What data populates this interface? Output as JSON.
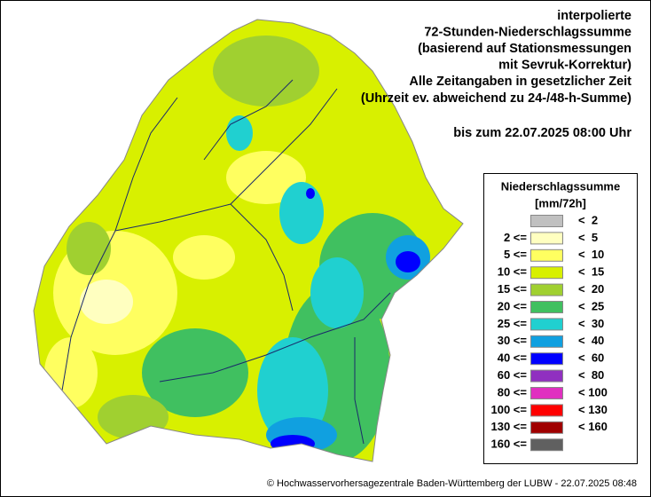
{
  "header": {
    "lines": [
      "interpolierte",
      "72-Stunden-Niederschlagssumme",
      "(basierend auf Stationsmessungen",
      "mit Sevruk-Korrektur)",
      "Alle Zeitangaben in gesetzlicher Zeit",
      "(Uhrzeit ev. abweichend zu 24-/48-h-Summe)"
    ],
    "period": "bis zum 22.07.2025 08:00 Uhr"
  },
  "legend": {
    "title": "Niederschlagssumme",
    "unit": "[mm/72h]",
    "rows": [
      {
        "upper": "<  2",
        "color": "#c0c0c0"
      },
      {
        "lower": "2 <=",
        "upper": "<  5",
        "color": "#ffffc0"
      },
      {
        "lower": "5 <=",
        "upper": "<  10",
        "color": "#ffff60"
      },
      {
        "lower": "10 <=",
        "upper": "<  15",
        "color": "#d8f000"
      },
      {
        "lower": "15 <=",
        "upper": "<  20",
        "color": "#a0d030"
      },
      {
        "lower": "20 <=",
        "upper": "<  25",
        "color": "#40c060"
      },
      {
        "lower": "25 <=",
        "upper": "<  30",
        "color": "#20d0d0"
      },
      {
        "lower": "30 <=",
        "upper": "<  40",
        "color": "#10a0e0"
      },
      {
        "lower": "40 <=",
        "upper": "<  60",
        "color": "#0000ff"
      },
      {
        "lower": "60 <=",
        "upper": "<  80",
        "color": "#9030c0"
      },
      {
        "lower": "80 <=",
        "upper": "< 100",
        "color": "#e030c0"
      },
      {
        "lower": "100 <=",
        "upper": "< 130",
        "color": "#ff0000"
      },
      {
        "lower": "130 <=",
        "upper": "< 160",
        "color": "#a00000"
      },
      {
        "lower": "160 <=",
        "color": "#606060"
      }
    ]
  },
  "footer": {
    "copyright": "© Hochwasservorhersagezentrale Baden-Württemberg der LUBW - 22.07.2025 08:48"
  }
}
